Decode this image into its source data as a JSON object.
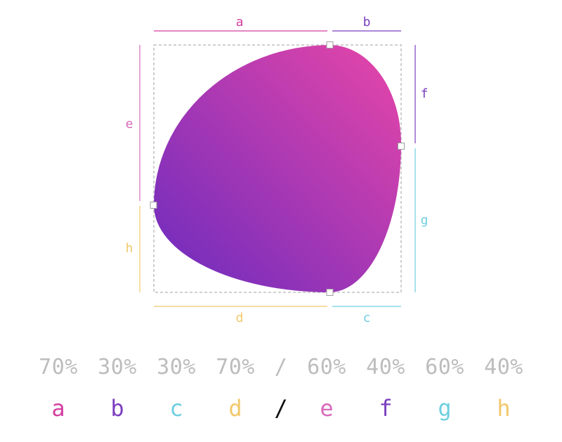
{
  "colors": {
    "a": "#d43fa0",
    "b": "#7b3fbf",
    "c": "#6fcfe0",
    "d": "#f2c86b",
    "e": "#d86aba",
    "f": "#7b3fbf",
    "g": "#6fcfe0",
    "h": "#f2c86b",
    "slash": "#111111",
    "values_text": "#bdbdbd",
    "gradient_start": "#6a2bbf",
    "gradient_end": "#e846a8",
    "bounding_box": "#b5b5b5"
  },
  "dimension_labels": {
    "a": "a",
    "b": "b",
    "c": "c",
    "d": "d",
    "e": "e",
    "f": "f",
    "g": "g",
    "h": "h"
  },
  "radius_values": {
    "a": "70%",
    "b": "30%",
    "c": "30%",
    "d": "70%",
    "slash": "/",
    "e": "60%",
    "f": "40%",
    "g": "60%",
    "h": "40%"
  },
  "legend_letters": {
    "a": "a",
    "b": "b",
    "c": "c",
    "d": "d",
    "slash": "/",
    "e": "e",
    "f": "f",
    "g": "g",
    "h": "h"
  }
}
